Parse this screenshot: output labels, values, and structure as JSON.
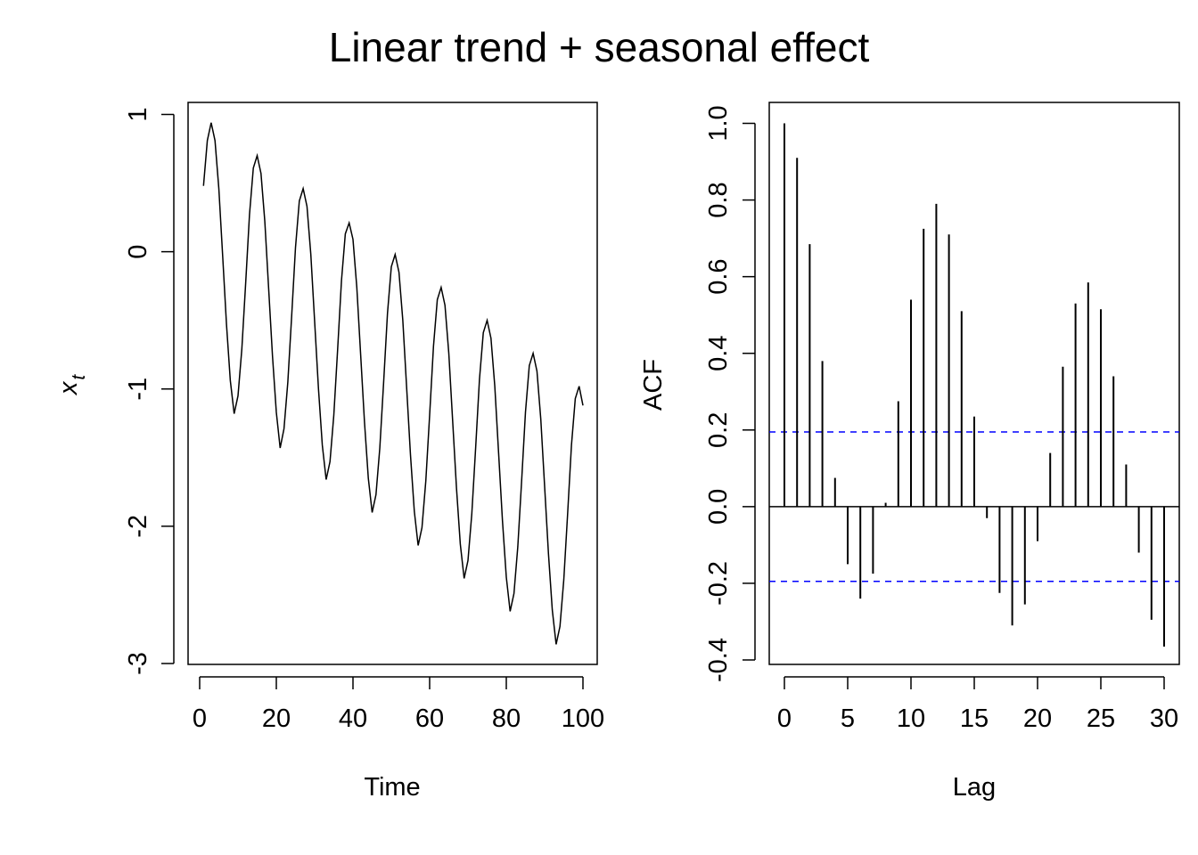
{
  "figure": {
    "title": "Linear trend + seasonal effect"
  },
  "chart_data": [
    {
      "type": "line",
      "xlabel": "Time",
      "ylabel": "x_t",
      "xlim": [
        1,
        100
      ],
      "ylim": [
        -3,
        1
      ],
      "xticks": [
        0,
        20,
        40,
        60,
        80,
        100
      ],
      "yticks": [
        -3,
        -2,
        -1,
        0,
        1
      ],
      "line_color": "#000000",
      "x": [
        1,
        2,
        3,
        4,
        5,
        6,
        7,
        8,
        9,
        10,
        11,
        12,
        13,
        14,
        15,
        16,
        17,
        18,
        19,
        20,
        21,
        22,
        23,
        24,
        25,
        26,
        27,
        28,
        29,
        30,
        31,
        32,
        33,
        34,
        35,
        36,
        37,
        38,
        39,
        40,
        41,
        42,
        43,
        44,
        45,
        46,
        47,
        48,
        49,
        50,
        51,
        52,
        53,
        54,
        55,
        56,
        57,
        58,
        59,
        60,
        61,
        62,
        63,
        64,
        65,
        66,
        67,
        68,
        69,
        70,
        71,
        72,
        73,
        74,
        75,
        76,
        77,
        78,
        79,
        80,
        81,
        82,
        83,
        84,
        85,
        86,
        87,
        88,
        89,
        90,
        91,
        92,
        93,
        94,
        95,
        96,
        97,
        98,
        99,
        100
      ],
      "y": [
        0.48,
        0.81,
        0.94,
        0.81,
        0.46,
        -0.03,
        -0.53,
        -0.94,
        -1.18,
        -1.05,
        -0.71,
        -0.23,
        0.27,
        0.61,
        0.7,
        0.57,
        0.22,
        -0.27,
        -0.76,
        -1.17,
        -1.43,
        -1.29,
        -0.95,
        -0.47,
        0.03,
        0.37,
        0.46,
        0.33,
        -0.02,
        -0.51,
        -1.0,
        -1.41,
        -1.66,
        -1.53,
        -1.19,
        -0.71,
        -0.21,
        0.13,
        0.21,
        0.09,
        -0.26,
        -0.75,
        -1.24,
        -1.65,
        -1.9,
        -1.77,
        -1.43,
        -0.95,
        -0.45,
        -0.11,
        -0.02,
        -0.15,
        -0.5,
        -0.99,
        -1.48,
        -1.89,
        -2.14,
        -2.01,
        -1.67,
        -1.19,
        -0.69,
        -0.35,
        -0.26,
        -0.39,
        -0.74,
        -1.23,
        -1.72,
        -2.13,
        -2.38,
        -2.25,
        -1.91,
        -1.43,
        -0.93,
        -0.59,
        -0.5,
        -0.63,
        -0.98,
        -1.47,
        -1.96,
        -2.37,
        -2.62,
        -2.49,
        -2.15,
        -1.67,
        -1.17,
        -0.83,
        -0.74,
        -0.87,
        -1.22,
        -1.71,
        -2.2,
        -2.61,
        -2.86,
        -2.73,
        -2.39,
        -1.91,
        -1.41,
        -1.07,
        -0.98,
        -1.12
      ]
    },
    {
      "type": "bar",
      "xlabel": "Lag",
      "ylabel": "ACF",
      "xlim": [
        0,
        30
      ],
      "ylim": [
        -0.4,
        1.0
      ],
      "xticks": [
        0,
        5,
        10,
        15,
        20,
        25,
        30
      ],
      "yticks": [
        -0.4,
        -0.2,
        0.0,
        0.2,
        0.4,
        0.6,
        0.8,
        1.0
      ],
      "ytick_labels": [
        "-0.4",
        "-0.2",
        "0.0",
        "0.2",
        "0.4",
        "0.6",
        "0.8",
        "1.0"
      ],
      "lags": [
        0,
        1,
        2,
        3,
        4,
        5,
        6,
        7,
        8,
        9,
        10,
        11,
        12,
        13,
        14,
        15,
        16,
        17,
        18,
        19,
        20,
        21,
        22,
        23,
        24,
        25,
        26,
        27,
        28,
        29,
        30
      ],
      "values": [
        1.0,
        0.91,
        0.685,
        0.38,
        0.075,
        -0.15,
        -0.24,
        -0.175,
        0.01,
        0.275,
        0.54,
        0.725,
        0.79,
        0.71,
        0.51,
        0.235,
        -0.03,
        -0.225,
        -0.31,
        -0.255,
        -0.09,
        0.14,
        0.365,
        0.53,
        0.585,
        0.515,
        0.34,
        0.11,
        -0.12,
        -0.295,
        -0.365
      ],
      "confidence_limit": 0.195,
      "confidence_color": "#0000ff",
      "bar_color": "#000000"
    }
  ]
}
